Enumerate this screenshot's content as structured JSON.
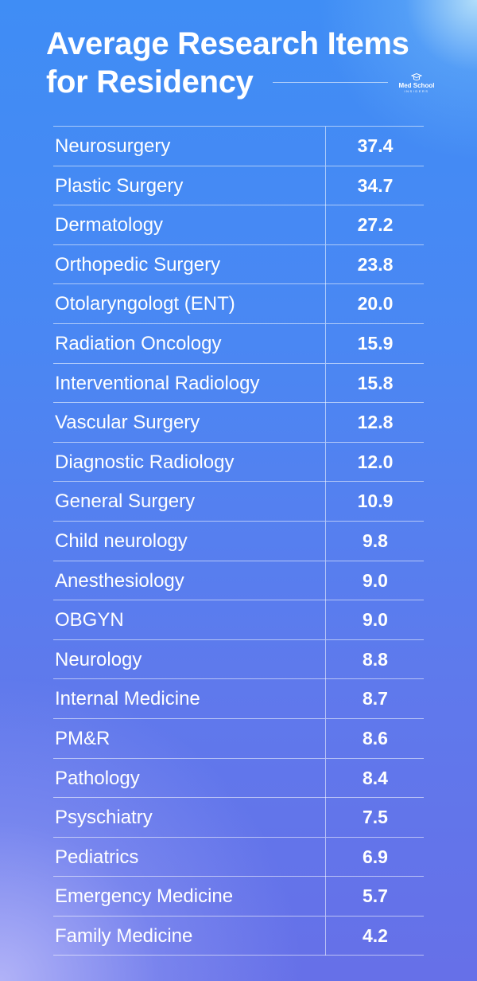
{
  "header": {
    "title_lines": [
      "Average Research Items",
      "for Residency"
    ],
    "logo": {
      "line1": "Med School",
      "line2": "INSIDERS"
    }
  },
  "table": {
    "rows": [
      [
        "Neurosurgery",
        "37.4"
      ],
      [
        "Plastic Surgery",
        "34.7"
      ],
      [
        "Dermatology",
        "27.2"
      ],
      [
        "Orthopedic Surgery",
        "23.8"
      ],
      [
        "Otolaryngologt (ENT)",
        "20.0"
      ],
      [
        "Radiation Oncology",
        "15.9"
      ],
      [
        "Interventional Radiology",
        "15.8"
      ],
      [
        "Vascular Surgery",
        "12.8"
      ],
      [
        "Diagnostic Radiology",
        "12.0"
      ],
      [
        "General Surgery",
        "10.9"
      ],
      [
        "Child neurology",
        "9.8"
      ],
      [
        "Anesthesiology",
        "9.0"
      ],
      [
        "OBGYN",
        "9.0"
      ],
      [
        "Neurology",
        "8.8"
      ],
      [
        "Internal Medicine",
        "8.7"
      ],
      [
        "PM&R",
        "8.6"
      ],
      [
        "Pathology",
        "8.4"
      ],
      [
        "Psyschiatry",
        "7.5"
      ],
      [
        "Pediatrics",
        "6.9"
      ],
      [
        "Emergency Medicine",
        "5.7"
      ],
      [
        "Family Medicine",
        "4.2"
      ]
    ]
  }
}
